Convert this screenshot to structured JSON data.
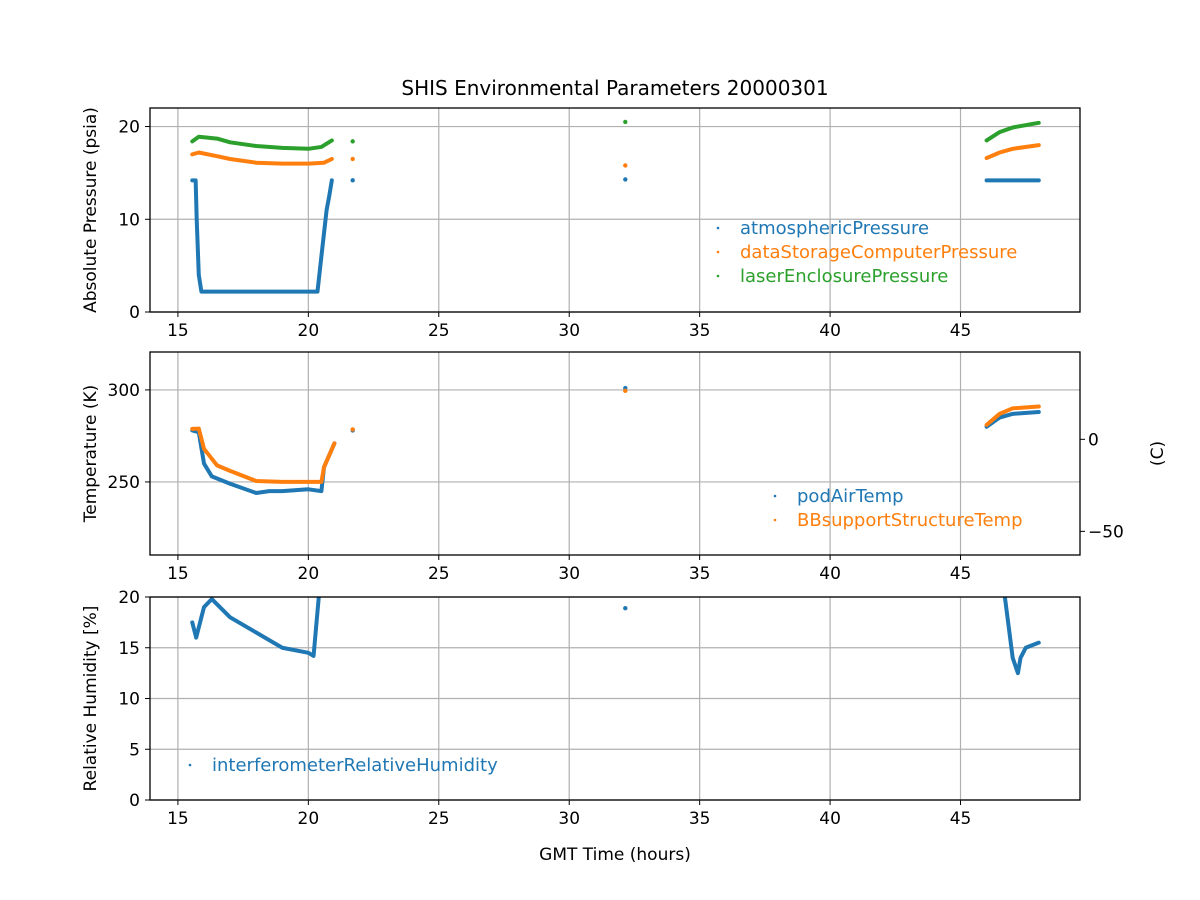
{
  "chart_data": {
    "type": "scatter",
    "title": "SHIS Environmental Parameters 20000301",
    "xlabel": "GMT Time (hours)",
    "xlim": [
      13.93,
      49.58
    ],
    "xticks": [
      15,
      20,
      25,
      30,
      35,
      40,
      45
    ],
    "grid": true,
    "panels": [
      {
        "ylabel": "Absolute Pressure (psia)",
        "ylim": [
          0,
          22
        ],
        "yticks": [
          0,
          10,
          20
        ],
        "legend_position": "lower-right",
        "series": [
          {
            "name": "atmosphericPressure",
            "color": "#1f77b4",
            "segments": [
              [
                [
                  15.55,
                  14.2
                ],
                [
                  15.68,
                  14.2
                ],
                [
                  15.72,
                  10
                ],
                [
                  15.8,
                  4
                ],
                [
                  15.9,
                  2.2
                ],
                [
                  17,
                  2.2
                ],
                [
                  18,
                  2.2
                ],
                [
                  19,
                  2.2
                ],
                [
                  20,
                  2.2
                ],
                [
                  20.35,
                  2.2
                ],
                [
                  20.5,
                  6
                ],
                [
                  20.7,
                  11
                ],
                [
                  20.8,
                  12.5
                ],
                [
                  20.9,
                  14.2
                ]
              ],
              [
                [
                  21.7,
                  14.2
                ]
              ],
              [
                [
                  32.15,
                  14.3
                ]
              ],
              [
                [
                  46,
                  14.2
                ],
                [
                  47,
                  14.2
                ],
                [
                  48,
                  14.2
                ]
              ]
            ]
          },
          {
            "name": "dataStorageComputerPressure",
            "color": "#ff7f0e",
            "segments": [
              [
                [
                  15.55,
                  17.0
                ],
                [
                  15.8,
                  17.2
                ],
                [
                  16.5,
                  16.8
                ],
                [
                  17,
                  16.5
                ],
                [
                  18,
                  16.1
                ],
                [
                  19,
                  16.0
                ],
                [
                  20,
                  16.0
                ],
                [
                  20.6,
                  16.1
                ],
                [
                  20.9,
                  16.5
                ]
              ],
              [
                [
                  21.7,
                  16.5
                ]
              ],
              [
                [
                  32.15,
                  15.8
                ]
              ],
              [
                [
                  46,
                  16.6
                ],
                [
                  46.5,
                  17.2
                ],
                [
                  47,
                  17.6
                ],
                [
                  48,
                  18.0
                ]
              ]
            ]
          },
          {
            "name": "laserEnclosurePressure",
            "color": "#2ca02c",
            "segments": [
              [
                [
                  15.55,
                  18.4
                ],
                [
                  15.8,
                  18.9
                ],
                [
                  16.5,
                  18.7
                ],
                [
                  17,
                  18.3
                ],
                [
                  18,
                  17.9
                ],
                [
                  19,
                  17.7
                ],
                [
                  20,
                  17.6
                ],
                [
                  20.5,
                  17.8
                ],
                [
                  20.9,
                  18.5
                ]
              ],
              [
                [
                  21.7,
                  18.4
                ]
              ],
              [
                [
                  32.15,
                  20.5
                ]
              ],
              [
                [
                  46,
                  18.5
                ],
                [
                  46.5,
                  19.4
                ],
                [
                  47,
                  19.9
                ],
                [
                  48,
                  20.4
                ]
              ]
            ]
          }
        ]
      },
      {
        "ylabel": "Temperature (K)",
        "ylim": [
          210.3,
          320.6
        ],
        "yticks": [
          250,
          300
        ],
        "secondary_ylabel": "(C)",
        "secondary_yticks": [
          0,
          -50
        ],
        "legend_position": "lower-right",
        "series": [
          {
            "name": "podAirTemp",
            "color": "#1f77b4",
            "segments": [
              [
                [
                  15.55,
                  278
                ],
                [
                  15.8,
                  277
                ],
                [
                  16.0,
                  260
                ],
                [
                  16.3,
                  253
                ],
                [
                  17,
                  249
                ],
                [
                  18,
                  244
                ],
                [
                  18.5,
                  245
                ],
                [
                  19,
                  245
                ],
                [
                  20,
                  246
                ],
                [
                  20.5,
                  245
                ],
                [
                  20.6,
                  258
                ],
                [
                  21,
                  271
                ]
              ],
              [
                [
                  21.7,
                  278
                ]
              ],
              [
                [
                  32.15,
                  301
                ]
              ],
              [
                [
                  46,
                  280
                ],
                [
                  46.5,
                  285
                ],
                [
                  47,
                  287
                ],
                [
                  48,
                  288
                ]
              ]
            ]
          },
          {
            "name": "BBsupportStructureTemp",
            "color": "#ff7f0e",
            "segments": [
              [
                [
                  15.55,
                  278.8
                ],
                [
                  15.8,
                  279
                ],
                [
                  16.0,
                  268
                ],
                [
                  16.5,
                  259
                ],
                [
                  17,
                  256
                ],
                [
                  18,
                  250.5
                ],
                [
                  19,
                  250
                ],
                [
                  20,
                  250
                ],
                [
                  20.5,
                  250
                ],
                [
                  20.6,
                  258
                ],
                [
                  21,
                  271
                ]
              ],
              [
                [
                  21.7,
                  278.5
                ]
              ],
              [
                [
                  32.15,
                  299.5
                ]
              ],
              [
                [
                  46,
                  281
                ],
                [
                  46.5,
                  287
                ],
                [
                  47,
                  290
                ],
                [
                  48,
                  291
                ]
              ]
            ]
          }
        ]
      },
      {
        "ylabel": "Relative Humidity [%]",
        "ylim": [
          0,
          20
        ],
        "yticks": [
          0,
          5,
          10,
          15,
          20
        ],
        "legend_position": "lower-left",
        "series": [
          {
            "name": "interferometerRelativeHumidity",
            "color": "#1f77b4",
            "segments": [
              [
                [
                  15.55,
                  17.5
                ],
                [
                  15.7,
                  16
                ],
                [
                  16,
                  19
                ],
                [
                  16.3,
                  19.8
                ],
                [
                  17,
                  18
                ],
                [
                  18,
                  16.5
                ],
                [
                  19,
                  15
                ],
                [
                  20,
                  14.5
                ],
                [
                  20.2,
                  14.2
                ],
                [
                  20.4,
                  20
                ]
              ],
              [
                [
                  32.15,
                  18.9
                ]
              ],
              [
                [
                  46.7,
                  20
                ],
                [
                  47,
                  14
                ],
                [
                  47.2,
                  12.5
                ],
                [
                  47.3,
                  14
                ],
                [
                  47.5,
                  15
                ],
                [
                  48,
                  15.5
                ]
              ]
            ]
          }
        ]
      }
    ]
  }
}
